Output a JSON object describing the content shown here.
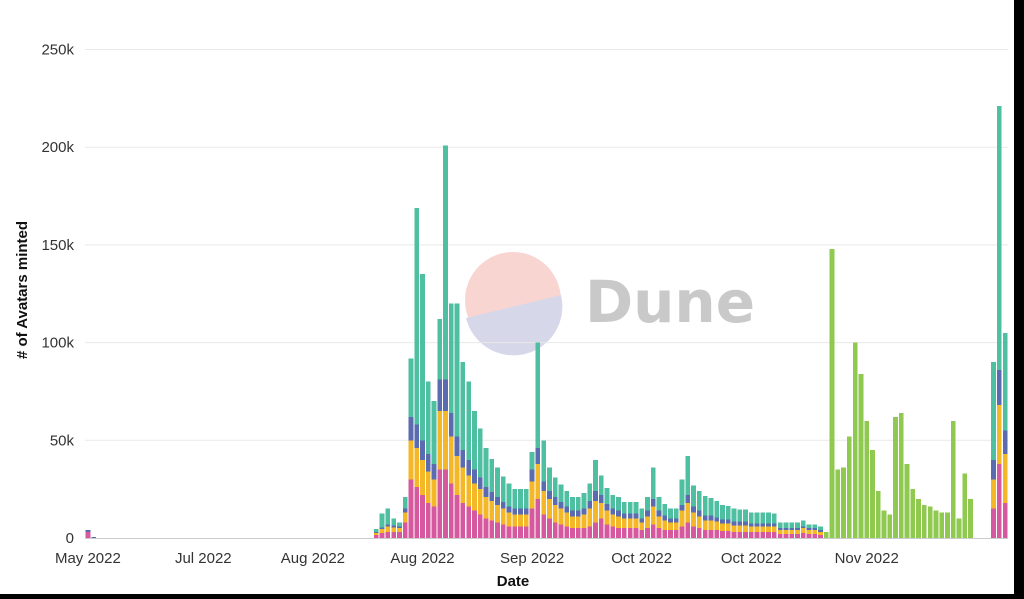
{
  "chart_data": {
    "type": "bar",
    "stacked": true,
    "xlabel": "Date",
    "ylabel": "# of Avatars minted",
    "ylim": [
      0,
      260000
    ],
    "yticks": [
      0,
      50000,
      100000,
      150000,
      200000,
      250000
    ],
    "ytick_labels": [
      "0",
      "50k",
      "100k",
      "150k",
      "200k",
      "250k"
    ],
    "xtick_labels": [
      {
        "label": "May 2022",
        "index": 0
      },
      {
        "label": "Jul 2022",
        "index": 20
      },
      {
        "label": "Aug 2022",
        "index": 39
      },
      {
        "label": "Aug 2022",
        "index": 58
      },
      {
        "label": "Sep 2022",
        "index": 77
      },
      {
        "label": "Oct 2022",
        "index": 96
      },
      {
        "label": "Oct 2022",
        "index": 115
      },
      {
        "label": "Nov 2022",
        "index": 135
      }
    ],
    "grid": true,
    "legend": "none",
    "watermark": "Dune",
    "series": [
      {
        "color": "#d6589f",
        "values": [
          3000,
          0,
          0,
          0,
          0,
          0,
          0,
          0,
          0,
          0,
          0,
          0,
          0,
          0,
          0,
          0,
          0,
          0,
          0,
          0,
          0,
          0,
          0,
          0,
          0,
          0,
          0,
          0,
          0,
          0,
          0,
          0,
          0,
          0,
          0,
          0,
          0,
          0,
          0,
          0,
          0,
          0,
          0,
          0,
          0,
          0,
          0,
          0,
          0,
          0,
          1500,
          2500,
          3000,
          3000,
          3000,
          8000,
          30000,
          26000,
          22000,
          18000,
          16000,
          35000,
          35000,
          28000,
          22000,
          18000,
          16000,
          14000,
          12000,
          10000,
          9000,
          8000,
          7000,
          6000,
          6000,
          6000,
          6000,
          15000,
          20000,
          12000,
          10000,
          8000,
          7000,
          6000,
          5000,
          5000,
          5000,
          6000,
          8000,
          10000,
          7000,
          6000,
          5000,
          5000,
          5000,
          5000,
          4000,
          5000,
          7000,
          5000,
          4000,
          4000,
          4000,
          6000,
          8000,
          6000,
          5000,
          4000,
          4000,
          4000,
          3500,
          3500,
          3000,
          3000,
          3000,
          3000,
          3000,
          3000,
          3000,
          3000,
          2000,
          2000,
          2000,
          2000,
          2500,
          2000,
          2000,
          1500,
          0,
          0,
          0,
          0,
          0,
          0,
          0,
          0,
          0,
          0,
          0,
          0,
          0,
          0,
          0,
          0,
          0,
          0,
          0,
          0,
          0,
          0,
          0,
          0,
          0,
          0,
          0,
          0,
          0,
          15000,
          38000,
          18000
        ]
      },
      {
        "color": "#f4b728",
        "values": [
          0,
          0,
          0,
          0,
          0,
          0,
          0,
          0,
          0,
          0,
          0,
          0,
          0,
          0,
          0,
          0,
          0,
          0,
          0,
          0,
          0,
          0,
          0,
          0,
          0,
          0,
          0,
          0,
          0,
          0,
          0,
          0,
          0,
          0,
          0,
          0,
          0,
          0,
          0,
          0,
          0,
          0,
          0,
          0,
          0,
          0,
          0,
          0,
          0,
          0,
          1000,
          2000,
          3000,
          2500,
          2000,
          5000,
          20000,
          20000,
          18000,
          16000,
          14000,
          30000,
          30000,
          24000,
          20000,
          18000,
          16000,
          14000,
          13000,
          11000,
          10000,
          9000,
          8000,
          7000,
          6000,
          6000,
          6000,
          14000,
          18000,
          12000,
          10000,
          9000,
          8000,
          7000,
          6000,
          6000,
          7000,
          9000,
          11000,
          8000,
          7000,
          6000,
          6000,
          5000,
          5000,
          5000,
          4000,
          6000,
          9000,
          6000,
          5000,
          4000,
          4000,
          8000,
          10000,
          7000,
          6000,
          5000,
          5000,
          4500,
          4000,
          4000,
          3500,
          3500,
          3500,
          3000,
          3000,
          3000,
          3000,
          3000,
          2000,
          2000,
          2000,
          2000,
          2500,
          2000,
          2000,
          1500,
          0,
          0,
          0,
          0,
          0,
          0,
          0,
          0,
          0,
          0,
          0,
          0,
          0,
          0,
          0,
          0,
          0,
          0,
          0,
          0,
          0,
          0,
          0,
          0,
          0,
          0,
          0,
          0,
          0,
          15000,
          30000,
          25000
        ]
      },
      {
        "color": "#5a6bb0",
        "values": [
          1000,
          500,
          0,
          0,
          0,
          0,
          0,
          0,
          0,
          0,
          0,
          0,
          0,
          0,
          0,
          0,
          0,
          0,
          0,
          0,
          0,
          0,
          0,
          0,
          0,
          0,
          0,
          0,
          0,
          0,
          0,
          0,
          0,
          0,
          0,
          0,
          0,
          0,
          0,
          0,
          0,
          0,
          0,
          0,
          0,
          0,
          0,
          0,
          0,
          0,
          500,
          1000,
          1000,
          1000,
          1000,
          2000,
          12000,
          12000,
          10000,
          9000,
          8000,
          16000,
          16000,
          12000,
          10000,
          9000,
          8000,
          7000,
          6000,
          5000,
          4500,
          4000,
          3500,
          3000,
          3000,
          3000,
          3000,
          6000,
          8000,
          5000,
          4000,
          4000,
          3500,
          3000,
          3000,
          3000,
          3000,
          4000,
          5000,
          4000,
          3500,
          3000,
          3000,
          2500,
          2500,
          2500,
          2000,
          3000,
          4000,
          3000,
          2500,
          2000,
          2000,
          3000,
          4000,
          3000,
          3000,
          2500,
          2500,
          2000,
          2000,
          2000,
          2000,
          2000,
          2000,
          1500,
          1500,
          1500,
          1500,
          1500,
          1000,
          1000,
          1000,
          1000,
          1000,
          1000,
          1000,
          1000,
          0,
          0,
          0,
          0,
          0,
          0,
          0,
          0,
          0,
          0,
          0,
          0,
          0,
          0,
          0,
          0,
          0,
          0,
          0,
          0,
          0,
          0,
          0,
          0,
          0,
          0,
          0,
          0,
          0,
          10000,
          18000,
          12000
        ]
      },
      {
        "color": "#4ebfa1",
        "values": [
          0,
          0,
          0,
          0,
          0,
          0,
          0,
          0,
          0,
          0,
          0,
          0,
          0,
          0,
          0,
          0,
          0,
          0,
          0,
          0,
          0,
          0,
          0,
          0,
          0,
          0,
          0,
          0,
          0,
          0,
          0,
          0,
          0,
          0,
          0,
          0,
          0,
          0,
          0,
          0,
          0,
          0,
          0,
          0,
          0,
          0,
          0,
          0,
          0,
          0,
          1500,
          7000,
          8000,
          3500,
          2000,
          6000,
          30000,
          111000,
          85000,
          37000,
          32000,
          31000,
          120000,
          56000,
          68000,
          45000,
          40000,
          30000,
          25000,
          20000,
          17000,
          15000,
          13000,
          12000,
          10000,
          10000,
          10000,
          9000,
          54000,
          21000,
          12000,
          10000,
          9000,
          8000,
          7000,
          7000,
          8000,
          9000,
          16000,
          10000,
          8000,
          7000,
          7000,
          6000,
          6000,
          6000,
          5000,
          7000,
          16000,
          7000,
          6000,
          5000,
          5000,
          13000,
          20000,
          11000,
          10000,
          10000,
          9000,
          8500,
          7500,
          7000,
          6500,
          6000,
          6000,
          5500,
          5500,
          5500,
          5500,
          5000,
          3000,
          3000,
          3000,
          3000,
          3000,
          2000,
          2000,
          2000,
          0,
          0,
          0,
          0,
          0,
          0,
          0,
          0,
          0,
          0,
          0,
          0,
          0,
          0,
          0,
          0,
          0,
          0,
          0,
          0,
          0,
          0,
          0,
          0,
          0,
          0,
          0,
          0,
          0,
          50000,
          135000,
          50000
        ]
      },
      {
        "color": "#8fc94f",
        "values": [
          0,
          0,
          0,
          0,
          0,
          0,
          0,
          0,
          0,
          0,
          0,
          0,
          0,
          0,
          0,
          0,
          0,
          0,
          0,
          0,
          0,
          0,
          0,
          0,
          0,
          0,
          0,
          0,
          0,
          0,
          0,
          0,
          0,
          0,
          0,
          0,
          0,
          0,
          0,
          0,
          0,
          0,
          0,
          0,
          0,
          0,
          0,
          0,
          0,
          0,
          0,
          0,
          0,
          0,
          0,
          0,
          0,
          0,
          0,
          0,
          0,
          0,
          0,
          0,
          0,
          0,
          0,
          0,
          0,
          0,
          0,
          0,
          0,
          0,
          0,
          0,
          0,
          0,
          0,
          0,
          0,
          0,
          0,
          0,
          0,
          0,
          0,
          0,
          0,
          0,
          0,
          0,
          0,
          0,
          0,
          0,
          0,
          0,
          0,
          0,
          0,
          0,
          0,
          0,
          0,
          0,
          0,
          0,
          0,
          0,
          0,
          0,
          0,
          0,
          0,
          0,
          0,
          0,
          0,
          0,
          0,
          0,
          0,
          0,
          0,
          0,
          0,
          0,
          3000,
          148000,
          35000,
          36000,
          52000,
          100000,
          84000,
          60000,
          45000,
          24000,
          14000,
          12000,
          62000,
          64000,
          38000,
          25000,
          20000,
          17000,
          16000,
          14000,
          13000,
          13000,
          60000,
          10000,
          33000,
          20000
        ]
      }
    ]
  }
}
